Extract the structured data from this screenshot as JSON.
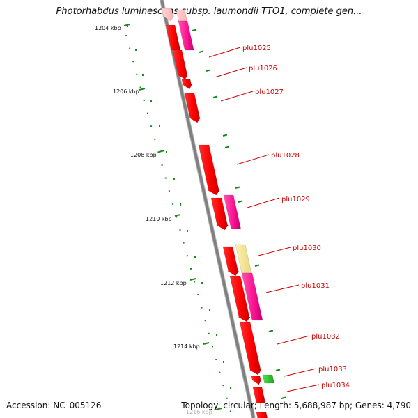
{
  "title": "Photorhabdus luminescens subsp. laumondii TTO1, complete gen...",
  "footer": {
    "accession": "Accession: NC_005126",
    "summary": "Topology: circular; Length: 5,688,987 bp; Genes: 4,790"
  },
  "colors": {
    "backbone": "#808080",
    "ruler": "#1a8a1a",
    "gene_label": "#cc0000",
    "cds": "#ff0000",
    "cds_alt": "#ff1493",
    "pseudo": "#f0e68c",
    "rna": "#22cc22",
    "faded": "#ffc0c0"
  },
  "ruler_labels": [
    "1204 kbp",
    "1206 kbp",
    "1208 kbp",
    "1210 kbp",
    "1212 kbp",
    "1214 kbp",
    "1216 kbp"
  ],
  "gene_labels": [
    "plu1025",
    "plu1026",
    "plu1027",
    "plu1028",
    "plu1029",
    "plu1030",
    "plu1031",
    "plu1032",
    "plu1033",
    "plu1034"
  ]
}
